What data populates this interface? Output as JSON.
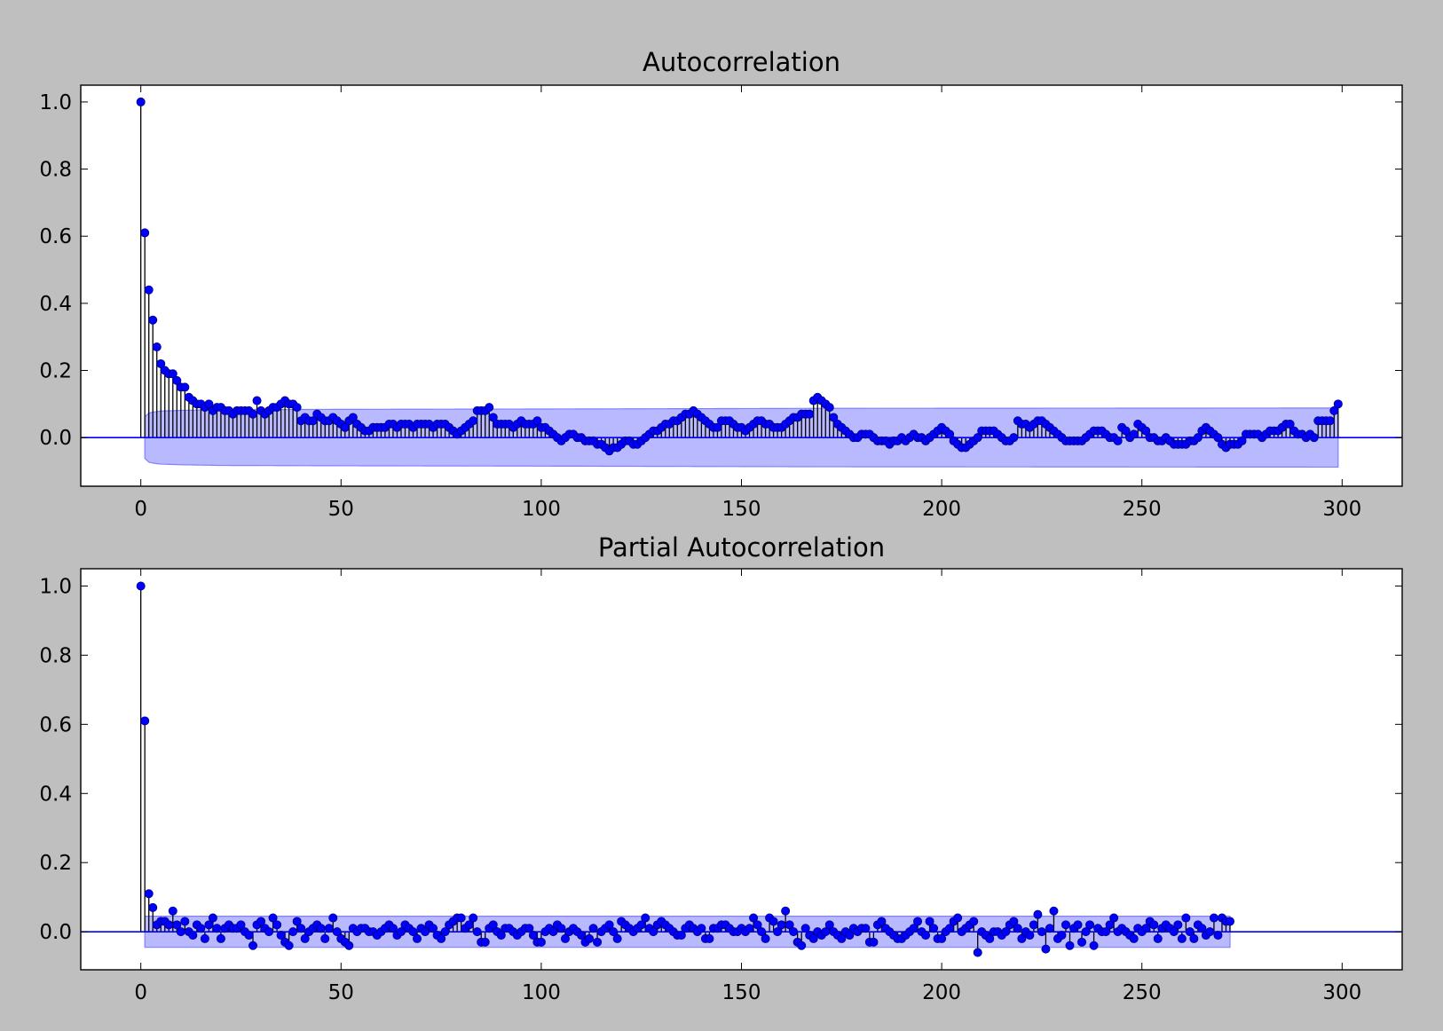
{
  "figure": {
    "background": "#bfbfbf"
  },
  "chart_data": [
    {
      "type": "stem",
      "title": "Autocorrelation",
      "xlabel": "",
      "ylabel": "",
      "xlim": [
        -15,
        315
      ],
      "ylim": [
        -0.145,
        1.05
      ],
      "xticks": [
        0,
        50,
        100,
        150,
        200,
        250,
        300
      ],
      "xtick_labels": [
        "0",
        "50",
        "100",
        "150",
        "200",
        "250",
        "300"
      ],
      "yticks": [
        0.0,
        0.2,
        0.4,
        0.6,
        0.8,
        1.0
      ],
      "ytick_labels": [
        "0.0",
        "0.2",
        "0.4",
        "0.6",
        "0.8",
        "1.0"
      ],
      "grid": false,
      "legend": "none",
      "colors": {
        "marker": "#0000ff",
        "stem": "#000000",
        "baseline": "#0000ff",
        "confidence_band": "#8080ff"
      },
      "confidence_band": {
        "lags": [
          1,
          2,
          3,
          5,
          10,
          20,
          50,
          100,
          170,
          300
        ],
        "upper": [
          0.062,
          0.073,
          0.076,
          0.079,
          0.081,
          0.083,
          0.084,
          0.085,
          0.087,
          0.088
        ],
        "lower": [
          -0.062,
          -0.073,
          -0.076,
          -0.079,
          -0.081,
          -0.083,
          -0.084,
          -0.085,
          -0.087,
          -0.088
        ]
      },
      "lags": [
        0,
        300
      ],
      "values": [
        1.0,
        0.61,
        0.44,
        0.35,
        0.27,
        0.22,
        0.2,
        0.19,
        0.19,
        0.17,
        0.15,
        0.15,
        0.12,
        0.11,
        0.1,
        0.1,
        0.09,
        0.1,
        0.08,
        0.09,
        0.09,
        0.08,
        0.08,
        0.07,
        0.08,
        0.08,
        0.08,
        0.08,
        0.07,
        0.11,
        0.08,
        0.07,
        0.08,
        0.09,
        0.09,
        0.1,
        0.11,
        0.1,
        0.1,
        0.09,
        0.05,
        0.06,
        0.05,
        0.05,
        0.07,
        0.06,
        0.05,
        0.05,
        0.06,
        0.05,
        0.04,
        0.03,
        0.05,
        0.06,
        0.04,
        0.03,
        0.02,
        0.02,
        0.03,
        0.03,
        0.03,
        0.03,
        0.04,
        0.04,
        0.03,
        0.04,
        0.04,
        0.04,
        0.03,
        0.04,
        0.04,
        0.04,
        0.04,
        0.03,
        0.04,
        0.04,
        0.04,
        0.03,
        0.02,
        0.01,
        0.02,
        0.03,
        0.04,
        0.05,
        0.08,
        0.08,
        0.08,
        0.09,
        0.06,
        0.04,
        0.04,
        0.04,
        0.04,
        0.03,
        0.04,
        0.05,
        0.04,
        0.04,
        0.04,
        0.05,
        0.03,
        0.03,
        0.02,
        0.01,
        0.0,
        -0.01,
        0.0,
        0.01,
        0.01,
        0.0,
        0.0,
        -0.01,
        -0.01,
        -0.01,
        -0.02,
        -0.02,
        -0.03,
        -0.04,
        -0.03,
        -0.03,
        -0.02,
        -0.01,
        -0.01,
        -0.02,
        -0.02,
        -0.01,
        0.0,
        0.01,
        0.02,
        0.02,
        0.03,
        0.04,
        0.04,
        0.05,
        0.05,
        0.06,
        0.07,
        0.07,
        0.08,
        0.07,
        0.06,
        0.05,
        0.04,
        0.03,
        0.03,
        0.05,
        0.05,
        0.05,
        0.04,
        0.03,
        0.03,
        0.02,
        0.03,
        0.04,
        0.05,
        0.05,
        0.04,
        0.04,
        0.03,
        0.03,
        0.03,
        0.04,
        0.05,
        0.06,
        0.06,
        0.07,
        0.07,
        0.07,
        0.11,
        0.12,
        0.11,
        0.1,
        0.09,
        0.06,
        0.04,
        0.03,
        0.02,
        0.01,
        0.0,
        0.0,
        0.01,
        0.01,
        0.01,
        0.0,
        -0.01,
        -0.01,
        -0.01,
        -0.02,
        -0.01,
        -0.01,
        0.0,
        -0.01,
        0.0,
        0.01,
        0.0,
        0.0,
        -0.01,
        0.0,
        0.01,
        0.02,
        0.03,
        0.02,
        0.01,
        -0.01,
        -0.02,
        -0.03,
        -0.03,
        -0.02,
        -0.01,
        0.0,
        0.02,
        0.02,
        0.02,
        0.02,
        0.01,
        0.0,
        -0.01,
        -0.01,
        0.0,
        0.05,
        0.04,
        0.04,
        0.03,
        0.04,
        0.05,
        0.05,
        0.04,
        0.03,
        0.02,
        0.01,
        0.0,
        -0.01,
        -0.01,
        -0.01,
        -0.01,
        -0.01,
        0.0,
        0.01,
        0.02,
        0.02,
        0.02,
        0.01,
        0.0,
        0.0,
        -0.01,
        0.03,
        0.02,
        0.0,
        0.01,
        0.04,
        0.03,
        0.02,
        0.0,
        0.0,
        -0.01,
        -0.01,
        0.0,
        -0.01,
        -0.02,
        -0.02,
        -0.02,
        -0.02,
        -0.01,
        -0.01,
        0.0,
        0.02,
        0.03,
        0.02,
        0.01,
        0.0,
        -0.02,
        -0.03,
        -0.02,
        -0.02,
        -0.02,
        -0.01,
        0.01,
        0.01,
        0.01,
        0.01,
        0.0,
        0.01,
        0.02,
        0.02,
        0.02,
        0.03,
        0.04,
        0.04,
        0.02,
        0.01,
        0.01,
        0.0,
        0.01,
        0.0,
        0.05,
        0.05,
        0.05,
        0.05,
        0.08,
        0.1
      ]
    },
    {
      "type": "stem",
      "title": "Partial Autocorrelation",
      "xlabel": "",
      "ylabel": "",
      "xlim": [
        -15,
        315
      ],
      "ylim": [
        -0.11,
        1.05
      ],
      "xticks": [
        0,
        50,
        100,
        150,
        200,
        250,
        300
      ],
      "xtick_labels": [
        "0",
        "50",
        "100",
        "150",
        "200",
        "250",
        "300"
      ],
      "yticks": [
        0.0,
        0.2,
        0.4,
        0.6,
        0.8,
        1.0
      ],
      "ytick_labels": [
        "0.0",
        "0.2",
        "0.4",
        "0.6",
        "0.8",
        "1.0"
      ],
      "grid": false,
      "legend": "none",
      "colors": {
        "marker": "#0000ff",
        "stem": "#000000",
        "baseline": "#0000ff",
        "confidence_band": "#8080ff"
      },
      "confidence_band": {
        "lags": [
          1,
          300
        ],
        "upper": [
          0.045,
          0.045
        ],
        "lower": [
          -0.045,
          -0.045
        ]
      },
      "lags": [
        0,
        300
      ],
      "values": [
        1.0,
        0.61,
        0.11,
        0.07,
        0.02,
        0.03,
        0.03,
        0.02,
        0.06,
        0.02,
        0.0,
        0.03,
        0.0,
        -0.01,
        0.02,
        0.01,
        -0.02,
        0.02,
        0.04,
        0.01,
        -0.02,
        0.01,
        0.02,
        0.01,
        0.01,
        0.02,
        0.0,
        -0.01,
        -0.04,
        0.02,
        0.03,
        0.01,
        0.0,
        0.04,
        0.02,
        -0.01,
        -0.03,
        -0.04,
        0.0,
        0.03,
        0.01,
        -0.02,
        0.0,
        0.01,
        0.02,
        0.01,
        -0.02,
        0.01,
        0.04,
        0.0,
        -0.02,
        -0.03,
        -0.04,
        0.01,
        0.0,
        0.01,
        0.01,
        0.0,
        0.0,
        -0.01,
        0.0,
        0.01,
        0.02,
        0.01,
        -0.01,
        0.0,
        0.02,
        0.01,
        0.0,
        -0.02,
        0.01,
        0.0,
        0.02,
        0.01,
        -0.01,
        -0.02,
        0.0,
        0.02,
        0.03,
        0.04,
        0.04,
        0.01,
        0.02,
        0.04,
        0.0,
        -0.03,
        -0.03,
        0.01,
        0.02,
        0.0,
        -0.01,
        0.01,
        0.01,
        0.0,
        -0.01,
        0.0,
        0.01,
        0.01,
        -0.01,
        -0.03,
        -0.03,
        0.0,
        0.01,
        0.0,
        0.02,
        0.01,
        -0.02,
        0.0,
        0.01,
        0.0,
        -0.01,
        -0.03,
        -0.02,
        0.01,
        -0.03,
        0.0,
        0.01,
        0.02,
        0.0,
        -0.02,
        0.03,
        0.02,
        0.01,
        0.0,
        0.01,
        0.02,
        0.04,
        0.01,
        0.0,
        0.02,
        0.03,
        0.02,
        0.01,
        0.0,
        -0.01,
        -0.01,
        0.01,
        0.02,
        0.01,
        0.0,
        0.01,
        -0.02,
        -0.02,
        0.01,
        0.01,
        0.02,
        0.02,
        0.01,
        0.0,
        0.0,
        0.01,
        0.0,
        0.01,
        0.04,
        0.02,
        0.0,
        -0.02,
        0.04,
        0.03,
        0.0,
        0.02,
        0.06,
        0.02,
        0.0,
        -0.03,
        -0.04,
        0.01,
        -0.01,
        -0.02,
        0.0,
        -0.01,
        0.0,
        0.02,
        0.0,
        -0.01,
        -0.02,
        0.0,
        -0.01,
        0.01,
        0.0,
        0.01,
        0.01,
        -0.03,
        -0.03,
        0.02,
        0.03,
        0.01,
        0.0,
        -0.01,
        -0.02,
        -0.02,
        -0.01,
        0.0,
        0.01,
        0.03,
        0.0,
        -0.01,
        0.03,
        0.01,
        -0.02,
        -0.02,
        0.0,
        0.01,
        0.03,
        0.04,
        0.0,
        0.01,
        0.02,
        0.03,
        -0.06,
        0.0,
        -0.01,
        -0.02,
        0.0,
        0.0,
        -0.01,
        0.0,
        0.02,
        0.03,
        0.01,
        -0.02,
        0.0,
        -0.01,
        0.02,
        0.05,
        0.0,
        -0.05,
        0.01,
        0.06,
        -0.02,
        -0.01,
        0.02,
        -0.04,
        0.01,
        0.02,
        -0.03,
        0.0,
        0.02,
        -0.04,
        0.01,
        0.0,
        0.0,
        0.02,
        0.04,
        0.0,
        0.01,
        0.0,
        -0.01,
        -0.02,
        0.01,
        0.0,
        0.01,
        0.03,
        0.02,
        -0.02,
        0.01,
        0.02,
        0.01,
        0.0,
        0.02,
        -0.02,
        0.04,
        0.0,
        -0.02,
        0.02,
        0.01,
        -0.01,
        0.0,
        0.04,
        -0.01,
        0.04,
        0.03,
        0.03
      ]
    }
  ],
  "layout_hint": "two stacked panels"
}
